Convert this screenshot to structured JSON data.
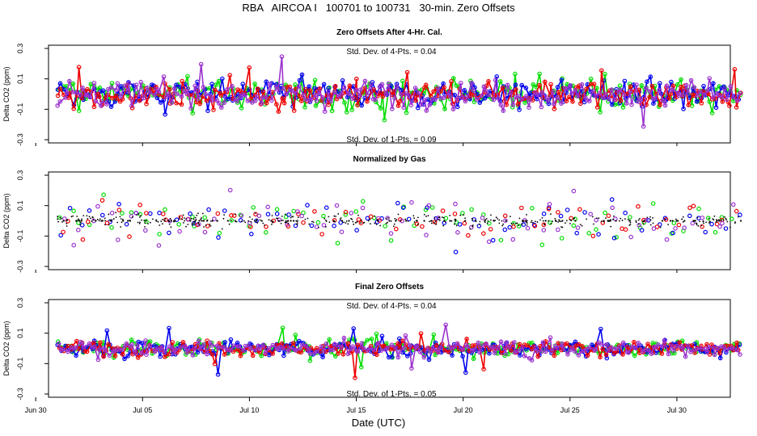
{
  "title": "RBA   AIRCOA I   100701 to 100731   30-min. Zero Offsets",
  "xlabel": "Date (UTC)",
  "colors": {
    "green": "#00dd00",
    "blue": "#0000ee",
    "red": "#ee0000",
    "purple": "#9a32cd",
    "black": "#000000"
  },
  "chart_data": [
    {
      "type": "scatter",
      "title": "Zero Offsets After 4-Hr. Cal.",
      "ylabel": "Delta CO2 (ppm)",
      "ylim": [
        -0.3,
        0.3
      ],
      "yticks": [
        0.3,
        0.1,
        -0.1,
        -0.3
      ],
      "ytick_labels": [
        "0.3",
        "0.1",
        "-0.1",
        "-0.3"
      ],
      "annotation_top": "Std. Dev. of 4-Pts. =  0.04",
      "annotation_bottom": "Std. Dev. of 1-Pts. =  0.09",
      "series": [
        {
          "name": "green",
          "sd": 0.09
        },
        {
          "name": "blue",
          "sd": 0.09
        },
        {
          "name": "red",
          "sd": 0.09
        },
        {
          "name": "purple",
          "sd": 0.09
        }
      ]
    },
    {
      "type": "scatter",
      "title": "Normalized by Gas",
      "ylabel": "Delta CO2 (ppm)",
      "ylim": [
        -0.3,
        0.3
      ],
      "yticks": [
        0.3,
        0.1,
        -0.1,
        -0.3
      ],
      "ytick_labels": [
        "0.3",
        "0.1",
        "-0.1",
        "-0.3"
      ],
      "annotation_top": "",
      "annotation_bottom": "",
      "series": [
        {
          "name": "green",
          "sd": 0.09
        },
        {
          "name": "blue",
          "sd": 0.09
        },
        {
          "name": "red",
          "sd": 0.09
        },
        {
          "name": "purple",
          "sd": 0.09
        },
        {
          "name": "black",
          "sd": 0.02
        }
      ]
    },
    {
      "type": "scatter",
      "title": "Final Zero Offsets",
      "ylabel": "Delta CO2 (ppm)",
      "ylim": [
        -0.3,
        0.3
      ],
      "yticks": [
        0.3,
        0.1,
        -0.1,
        -0.3
      ],
      "ytick_labels": [
        "0.3",
        "0.1",
        "-0.1",
        "-0.3"
      ],
      "annotation_top": "Std. Dev. of 4-Pts. =  0.04",
      "annotation_bottom": "Std. Dev. of 1-Pts. =  0.05",
      "series": [
        {
          "name": "green",
          "sd": 0.05
        },
        {
          "name": "blue",
          "sd": 0.05
        },
        {
          "name": "red",
          "sd": 0.05
        },
        {
          "name": "purple",
          "sd": 0.05
        }
      ]
    }
  ],
  "x_axis": {
    "range": [
      30.6,
      62.5
    ],
    "data_start": 31.0,
    "data_end": 63.0,
    "ticks": [
      30,
      35,
      40,
      45,
      50,
      55,
      60
    ],
    "tick_labels": [
      "Jun 30",
      "Jul 05",
      "Jul 10",
      "Jul 15",
      "Jul 20",
      "Jul 25",
      "Jul 30"
    ]
  }
}
